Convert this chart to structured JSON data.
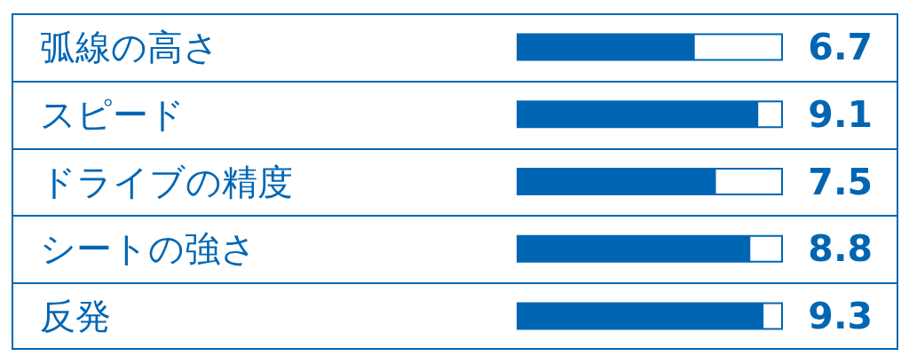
{
  "chart_data": {
    "type": "bar",
    "orientation": "horizontal",
    "categories": [
      "弧線の高さ",
      "スピード",
      "ドライブの精度",
      "シートの強さ",
      "反発"
    ],
    "values": [
      6.7,
      9.1,
      7.5,
      8.8,
      9.3
    ],
    "color": "#0066b3",
    "xlim": [
      0,
      10
    ],
    "data_labels": true,
    "tick_labels": "y"
  }
}
